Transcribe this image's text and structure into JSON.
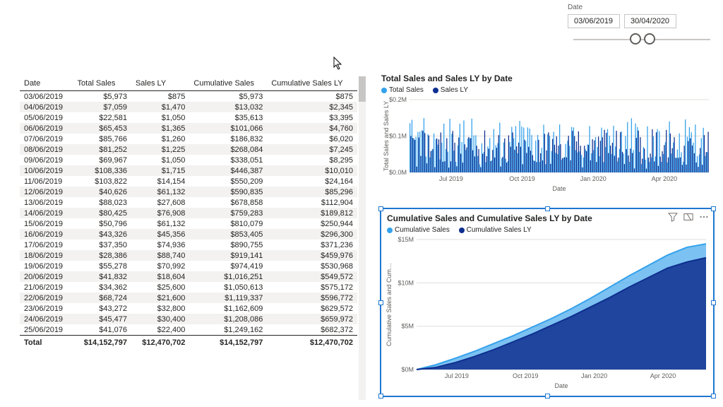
{
  "colors": {
    "series1": "#34a1eb",
    "series2": "#0f2f8f",
    "grid": "#e1dfdd",
    "axis": "#605e5c",
    "selection": "#1f77d0"
  },
  "slicer": {
    "label": "Date",
    "from": "03/06/2019",
    "to": "30/04/2020"
  },
  "table": {
    "columns": [
      "Date",
      "Total Sales",
      "Sales LY",
      "Cumulative Sales",
      "Cumulative Sales LY"
    ],
    "rows": [
      [
        "03/06/2019",
        "$5,973",
        "$875",
        "$5,973",
        "$875"
      ],
      [
        "04/06/2019",
        "$7,059",
        "$1,470",
        "$13,032",
        "$2,345"
      ],
      [
        "05/06/2019",
        "$22,581",
        "$1,050",
        "$35,613",
        "$3,395"
      ],
      [
        "06/06/2019",
        "$65,453",
        "$1,365",
        "$101,066",
        "$4,760"
      ],
      [
        "07/06/2019",
        "$85,766",
        "$1,260",
        "$186,832",
        "$6,020"
      ],
      [
        "08/06/2019",
        "$81,252",
        "$1,225",
        "$268,084",
        "$7,245"
      ],
      [
        "09/06/2019",
        "$69,967",
        "$1,050",
        "$338,051",
        "$8,295"
      ],
      [
        "10/06/2019",
        "$108,336",
        "$1,715",
        "$446,387",
        "$10,010"
      ],
      [
        "11/06/2019",
        "$103,822",
        "$14,154",
        "$550,209",
        "$24,164"
      ],
      [
        "12/06/2019",
        "$40,626",
        "$61,132",
        "$590,835",
        "$85,296"
      ],
      [
        "13/06/2019",
        "$88,023",
        "$27,608",
        "$678,858",
        "$112,904"
      ],
      [
        "14/06/2019",
        "$80,425",
        "$76,908",
        "$759,283",
        "$189,812"
      ],
      [
        "15/06/2019",
        "$50,796",
        "$61,132",
        "$810,079",
        "$250,944"
      ],
      [
        "16/06/2019",
        "$43,326",
        "$45,356",
        "$853,405",
        "$296,300"
      ],
      [
        "17/06/2019",
        "$37,350",
        "$74,936",
        "$890,755",
        "$371,236"
      ],
      [
        "18/06/2019",
        "$28,386",
        "$88,740",
        "$919,141",
        "$459,976"
      ],
      [
        "19/06/2019",
        "$55,278",
        "$70,992",
        "$974,419",
        "$530,968"
      ],
      [
        "20/06/2019",
        "$41,832",
        "$18,604",
        "$1,016,251",
        "$549,572"
      ],
      [
        "21/06/2019",
        "$34,362",
        "$25,600",
        "$1,050,613",
        "$575,172"
      ],
      [
        "22/06/2019",
        "$68,724",
        "$21,600",
        "$1,119,337",
        "$596,772"
      ],
      [
        "23/06/2019",
        "$43,272",
        "$32,800",
        "$1,162,609",
        "$629,572"
      ],
      [
        "24/06/2019",
        "$45,477",
        "$30,400",
        "$1,208,086",
        "$659,972"
      ],
      [
        "25/06/2019",
        "$41,076",
        "$22,400",
        "$1,249,162",
        "$682,372"
      ]
    ],
    "total": [
      "Total",
      "$14,152,797",
      "$12,470,702",
      "$14,152,797",
      "$12,470,702"
    ]
  },
  "chart1": {
    "title": "Total Sales and Sales LY by Date",
    "legend": [
      "Total Sales",
      "Sales LY"
    ],
    "ylabel": "Total Sales and Sales LY",
    "xlabel": "Date",
    "yticks": [
      "$0.0M",
      "$0.1M",
      "$0.2M"
    ],
    "xticks": [
      "Jul 2019",
      "Oct 2019",
      "Jan 2020",
      "Apr 2020"
    ],
    "ylim": [
      0,
      0.2
    ],
    "type": "bar"
  },
  "chart2": {
    "title": "Cumulative Sales and Cumulative Sales LY by Date",
    "legend": [
      "Cumulative Sales",
      "Cumulative Sales LY"
    ],
    "ylabel": "Cumulative Sales and Cum…",
    "xlabel": "Date",
    "yticks": [
      "$0M",
      "$5M",
      "$10M",
      "$15M"
    ],
    "xticks": [
      "Jul 2019",
      "Oct 2019",
      "Jan 2020",
      "Apr 2020"
    ],
    "ylim": [
      0,
      15
    ],
    "type": "area",
    "series1": [
      0,
      0.55,
      1.3,
      2.1,
      3.0,
      3.9,
      4.9,
      5.9,
      7.0,
      8.2,
      9.5,
      10.8,
      12.0,
      13.2,
      14.1,
      14.5
    ],
    "series2": [
      0,
      0.25,
      0.8,
      1.5,
      2.3,
      3.2,
      4.1,
      5.1,
      6.1,
      7.2,
      8.3,
      9.5,
      10.6,
      11.7,
      12.4,
      12.9
    ]
  }
}
